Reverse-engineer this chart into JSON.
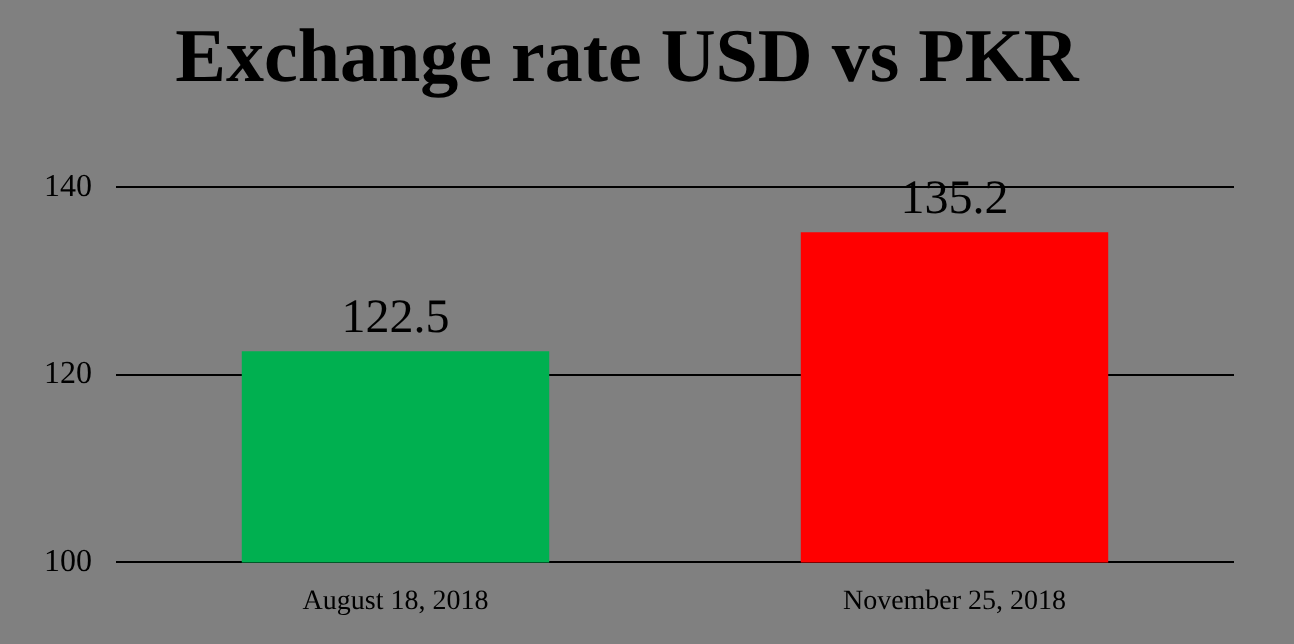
{
  "chart_data": {
    "type": "bar",
    "title": "Exchange rate USD vs PKR",
    "categories": [
      "August 18, 2018",
      "November 25, 2018"
    ],
    "values": [
      122.5,
      135.2
    ],
    "colors": [
      "#00b050",
      "#ff0000"
    ],
    "ylim": [
      100,
      140
    ],
    "yticks": [
      100,
      120,
      140
    ],
    "grid": "y",
    "legend": false,
    "data_labels": true
  }
}
